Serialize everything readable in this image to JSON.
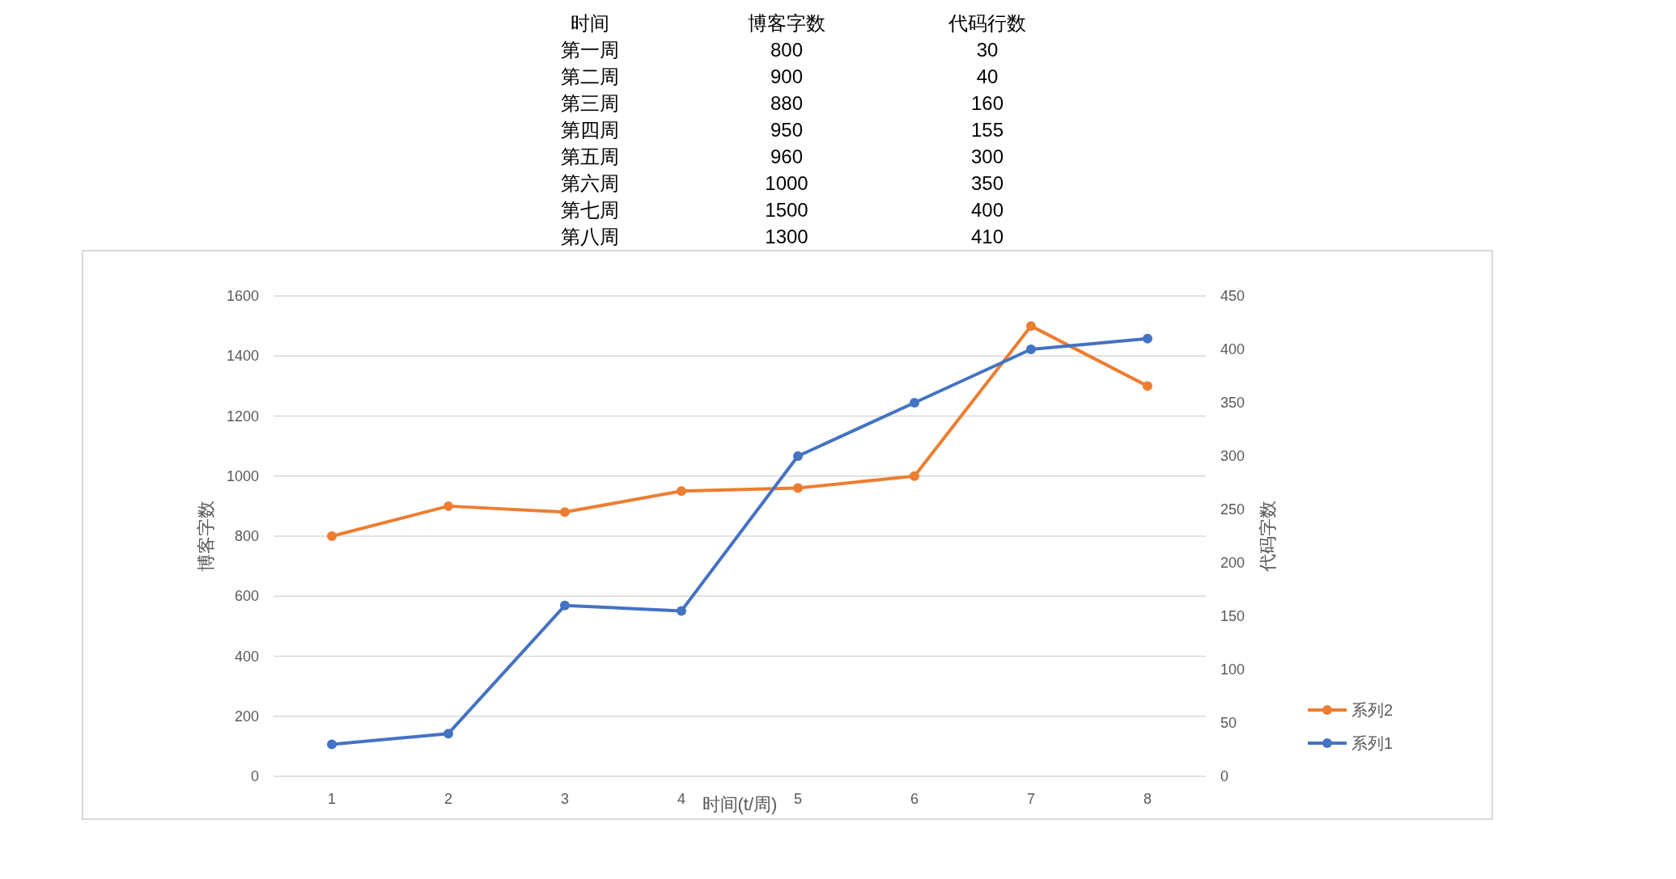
{
  "chart_data": [
    {
      "type": "heatmap",
      "annotations": [
        "时间"
      ],
      "categories": [
        "博客字数",
        "代码行数"
      ],
      "y_categories": [
        "第一周",
        "第二周",
        "第三周",
        "第四周",
        "第五周",
        "第六周",
        "第七周",
        "第八周"
      ],
      "cells": [
        [
          800,
          30
        ],
        [
          900,
          40
        ],
        [
          880,
          160
        ],
        [
          950,
          155
        ],
        [
          960,
          300
        ],
        [
          1000,
          350
        ],
        [
          1500,
          400
        ],
        [
          1300,
          410
        ]
      ],
      "data_labels": true
    },
    {
      "type": "line",
      "categories": [
        "1",
        "2",
        "3",
        "4",
        "5",
        "6",
        "7",
        "8"
      ],
      "series": [
        {
          "name": "系列2",
          "color": "#ed7d31",
          "values": [
            800,
            900,
            880,
            950,
            960,
            1000,
            1500,
            1300
          ]
        },
        {
          "name": "系列1",
          "color": "#4472c4",
          "values": [
            30,
            40,
            160,
            155,
            300,
            350,
            400,
            410
          ],
          "axis": "y2"
        }
      ],
      "xlabel": "时间(t/周)",
      "ylabel": "博客字数",
      "y2label": "代码字数",
      "ylim": [
        0,
        1600
      ],
      "yticks": [
        0,
        200,
        400,
        600,
        800,
        1000,
        1200,
        1400,
        1600
      ],
      "y2lim": [
        0,
        450
      ],
      "y2ticks": [
        0,
        50,
        100,
        150,
        200,
        250,
        300,
        350,
        400,
        450
      ],
      "grid": "y",
      "legend": "right",
      "marker": "circle",
      "line_style": "solid"
    }
  ]
}
